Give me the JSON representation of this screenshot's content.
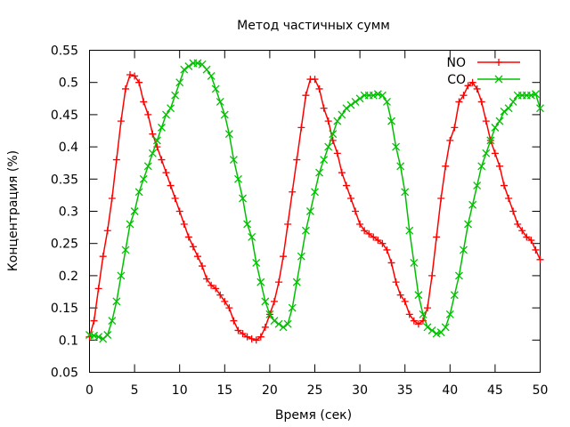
{
  "chart_data": {
    "type": "line",
    "title": "Метод частичных сумм",
    "xlabel": "Время (сек)",
    "ylabel": "Концентрация (%)",
    "xlim": [
      0,
      50
    ],
    "ylim": [
      0.05,
      0.55
    ],
    "xticks": [
      0,
      5,
      10,
      15,
      20,
      25,
      30,
      35,
      40,
      45,
      50
    ],
    "yticks": [
      0.05,
      0.1,
      0.15,
      0.2,
      0.25,
      0.3,
      0.35,
      0.4,
      0.45,
      0.5,
      0.55
    ],
    "xtick_labels": [
      "0",
      "5",
      "10",
      "15",
      "20",
      "25",
      "30",
      "35",
      "40",
      "45",
      "50"
    ],
    "ytick_labels": [
      "0.05",
      "0.1",
      "0.15",
      "0.2",
      "0.25",
      "0.3",
      "0.35",
      "0.4",
      "0.45",
      "0.5",
      "0.55"
    ],
    "grid": false,
    "legend_position": "top-right",
    "series": [
      {
        "name": "NO",
        "color": "#ff0000",
        "marker": "plus",
        "points": [
          [
            0,
            0.105
          ],
          [
            0.5,
            0.13
          ],
          [
            1,
            0.18
          ],
          [
            1.5,
            0.23
          ],
          [
            2,
            0.27
          ],
          [
            2.5,
            0.32
          ],
          [
            3,
            0.38
          ],
          [
            3.5,
            0.44
          ],
          [
            4,
            0.49
          ],
          [
            4.5,
            0.512
          ],
          [
            5,
            0.51
          ],
          [
            5.5,
            0.5
          ],
          [
            6,
            0.47
          ],
          [
            6.5,
            0.45
          ],
          [
            7,
            0.42
          ],
          [
            7.5,
            0.4
          ],
          [
            8,
            0.38
          ],
          [
            8.5,
            0.36
          ],
          [
            9,
            0.34
          ],
          [
            9.5,
            0.32
          ],
          [
            10,
            0.3
          ],
          [
            10.5,
            0.28
          ],
          [
            11,
            0.26
          ],
          [
            11.5,
            0.245
          ],
          [
            12,
            0.23
          ],
          [
            12.5,
            0.215
          ],
          [
            13,
            0.195
          ],
          [
            13.5,
            0.185
          ],
          [
            14,
            0.18
          ],
          [
            14.5,
            0.17
          ],
          [
            15,
            0.16
          ],
          [
            15.5,
            0.15
          ],
          [
            16,
            0.13
          ],
          [
            16.5,
            0.115
          ],
          [
            17,
            0.11
          ],
          [
            17.5,
            0.105
          ],
          [
            18,
            0.102
          ],
          [
            18.5,
            0.1
          ],
          [
            19,
            0.105
          ],
          [
            19.5,
            0.12
          ],
          [
            20,
            0.14
          ],
          [
            20.5,
            0.16
          ],
          [
            21,
            0.19
          ],
          [
            21.5,
            0.23
          ],
          [
            22,
            0.28
          ],
          [
            22.5,
            0.33
          ],
          [
            23,
            0.38
          ],
          [
            23.5,
            0.43
          ],
          [
            24,
            0.48
          ],
          [
            24.5,
            0.505
          ],
          [
            25,
            0.505
          ],
          [
            25.5,
            0.49
          ],
          [
            26,
            0.46
          ],
          [
            26.5,
            0.44
          ],
          [
            27,
            0.41
          ],
          [
            27.5,
            0.39
          ],
          [
            28,
            0.36
          ],
          [
            28.5,
            0.34
          ],
          [
            29,
            0.32
          ],
          [
            29.5,
            0.3
          ],
          [
            30,
            0.28
          ],
          [
            30.5,
            0.27
          ],
          [
            31,
            0.265
          ],
          [
            31.5,
            0.26
          ],
          [
            32,
            0.255
          ],
          [
            32.5,
            0.25
          ],
          [
            33,
            0.24
          ],
          [
            33.5,
            0.22
          ],
          [
            34,
            0.19
          ],
          [
            34.5,
            0.17
          ],
          [
            35,
            0.16
          ],
          [
            35.5,
            0.14
          ],
          [
            36,
            0.13
          ],
          [
            36.5,
            0.125
          ],
          [
            37,
            0.13
          ],
          [
            37.5,
            0.15
          ],
          [
            38,
            0.2
          ],
          [
            38.5,
            0.26
          ],
          [
            39,
            0.32
          ],
          [
            39.5,
            0.37
          ],
          [
            40,
            0.41
          ],
          [
            40.5,
            0.43
          ],
          [
            41,
            0.47
          ],
          [
            41.5,
            0.48
          ],
          [
            42,
            0.495
          ],
          [
            42.5,
            0.5
          ],
          [
            43,
            0.49
          ],
          [
            43.5,
            0.47
          ],
          [
            44,
            0.44
          ],
          [
            44.5,
            0.41
          ],
          [
            45,
            0.39
          ],
          [
            45.5,
            0.37
          ],
          [
            46,
            0.34
          ],
          [
            46.5,
            0.32
          ],
          [
            47,
            0.3
          ],
          [
            47.5,
            0.28
          ],
          [
            48,
            0.27
          ],
          [
            48.5,
            0.26
          ],
          [
            49,
            0.255
          ],
          [
            49.5,
            0.24
          ],
          [
            50,
            0.225
          ]
        ]
      },
      {
        "name": "CO",
        "color": "#00c000",
        "marker": "cross",
        "points": [
          [
            0,
            0.108
          ],
          [
            0.5,
            0.107
          ],
          [
            1,
            0.105
          ],
          [
            1.5,
            0.102
          ],
          [
            2,
            0.108
          ],
          [
            2.5,
            0.13
          ],
          [
            3,
            0.16
          ],
          [
            3.5,
            0.2
          ],
          [
            4,
            0.24
          ],
          [
            4.5,
            0.28
          ],
          [
            5,
            0.3
          ],
          [
            5.5,
            0.33
          ],
          [
            6,
            0.35
          ],
          [
            6.5,
            0.37
          ],
          [
            7,
            0.39
          ],
          [
            7.5,
            0.41
          ],
          [
            8,
            0.43
          ],
          [
            8.5,
            0.45
          ],
          [
            9,
            0.46
          ],
          [
            9.5,
            0.48
          ],
          [
            10,
            0.5
          ],
          [
            10.5,
            0.52
          ],
          [
            11,
            0.525
          ],
          [
            11.5,
            0.53
          ],
          [
            12,
            0.53
          ],
          [
            12.5,
            0.528
          ],
          [
            13,
            0.52
          ],
          [
            13.5,
            0.51
          ],
          [
            14,
            0.49
          ],
          [
            14.5,
            0.47
          ],
          [
            15,
            0.45
          ],
          [
            15.5,
            0.42
          ],
          [
            16,
            0.38
          ],
          [
            16.5,
            0.35
          ],
          [
            17,
            0.32
          ],
          [
            17.5,
            0.28
          ],
          [
            18,
            0.26
          ],
          [
            18.5,
            0.22
          ],
          [
            19,
            0.19
          ],
          [
            19.5,
            0.16
          ],
          [
            20,
            0.14
          ],
          [
            20.5,
            0.13
          ],
          [
            21,
            0.125
          ],
          [
            21.5,
            0.12
          ],
          [
            22,
            0.125
          ],
          [
            22.5,
            0.15
          ],
          [
            23,
            0.19
          ],
          [
            23.5,
            0.23
          ],
          [
            24,
            0.27
          ],
          [
            24.5,
            0.3
          ],
          [
            25,
            0.33
          ],
          [
            25.5,
            0.36
          ],
          [
            26,
            0.38
          ],
          [
            26.5,
            0.4
          ],
          [
            27,
            0.42
          ],
          [
            27.5,
            0.44
          ],
          [
            28,
            0.45
          ],
          [
            28.5,
            0.46
          ],
          [
            29,
            0.465
          ],
          [
            29.5,
            0.47
          ],
          [
            30,
            0.475
          ],
          [
            30.5,
            0.48
          ],
          [
            31,
            0.48
          ],
          [
            31.5,
            0.48
          ],
          [
            32,
            0.482
          ],
          [
            32.5,
            0.48
          ],
          [
            33,
            0.47
          ],
          [
            33.5,
            0.44
          ],
          [
            34,
            0.4
          ],
          [
            34.5,
            0.37
          ],
          [
            35,
            0.33
          ],
          [
            35.5,
            0.27
          ],
          [
            36,
            0.22
          ],
          [
            36.5,
            0.17
          ],
          [
            37,
            0.14
          ],
          [
            37.5,
            0.12
          ],
          [
            38,
            0.115
          ],
          [
            38.5,
            0.11
          ],
          [
            39,
            0.112
          ],
          [
            39.5,
            0.12
          ],
          [
            40,
            0.14
          ],
          [
            40.5,
            0.17
          ],
          [
            41,
            0.2
          ],
          [
            41.5,
            0.24
          ],
          [
            42,
            0.28
          ],
          [
            42.5,
            0.31
          ],
          [
            43,
            0.34
          ],
          [
            43.5,
            0.37
          ],
          [
            44,
            0.39
          ],
          [
            44.5,
            0.41
          ],
          [
            45,
            0.43
          ],
          [
            45.5,
            0.44
          ],
          [
            46,
            0.455
          ],
          [
            46.5,
            0.46
          ],
          [
            47,
            0.47
          ],
          [
            47.5,
            0.48
          ],
          [
            48,
            0.48
          ],
          [
            48.5,
            0.48
          ],
          [
            49,
            0.48
          ],
          [
            49.5,
            0.482
          ],
          [
            50,
            0.46
          ]
        ]
      }
    ]
  }
}
